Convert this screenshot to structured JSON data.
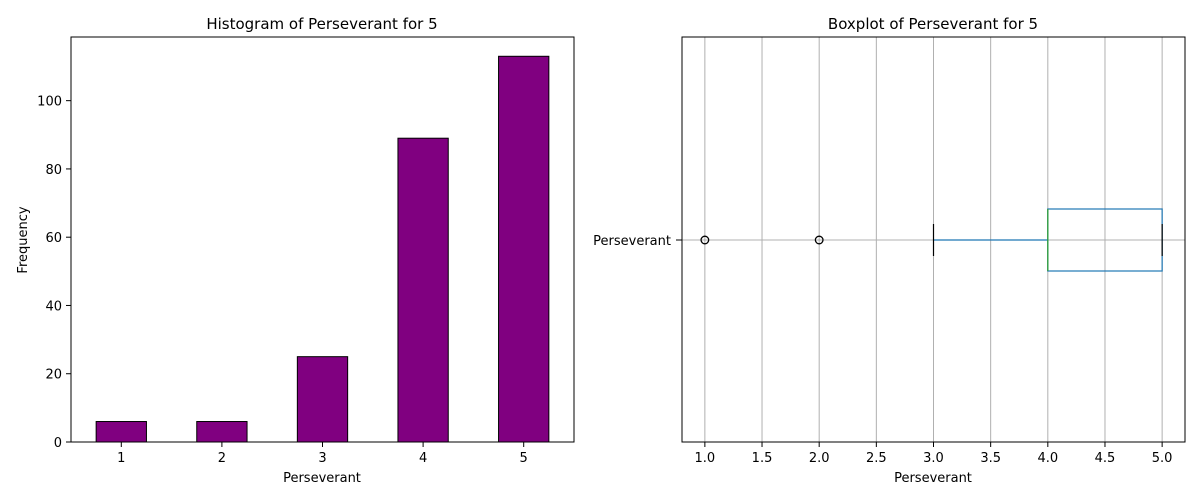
{
  "chart_data": [
    {
      "type": "bar",
      "title": "Histogram of Perseverant for 5",
      "xlabel": "Perseverant",
      "ylabel": "Frequency",
      "categories": [
        "1",
        "2",
        "3",
        "4",
        "5"
      ],
      "values": [
        6,
        6,
        25,
        89,
        113
      ],
      "ylim": [
        0,
        118.65
      ],
      "yticks": [
        0,
        20,
        40,
        60,
        80,
        100
      ],
      "grid": false,
      "bar_color": "#800080",
      "edge_color": "#000000"
    },
    {
      "type": "boxplot",
      "title": "Boxplot of Perseverant for 5",
      "xlabel": "Perseverant",
      "category_label": "Perseverant",
      "xlim": [
        0.8,
        5.2
      ],
      "xticks": [
        1.0,
        1.5,
        2.0,
        2.5,
        3.0,
        3.5,
        4.0,
        4.5,
        5.0
      ],
      "grid": true,
      "box": {
        "whisker_low": 3,
        "q1": 4,
        "median": 4,
        "q3": 5,
        "whisker_high": 5
      },
      "outliers": [
        1,
        2
      ],
      "box_color": "#1f77b4",
      "median_color": "#2ca02c",
      "whisker_color": "#1f77b4",
      "cap_color": "#000000",
      "flier_color": "#000000",
      "grid_color": "#b0b0b0"
    }
  ]
}
